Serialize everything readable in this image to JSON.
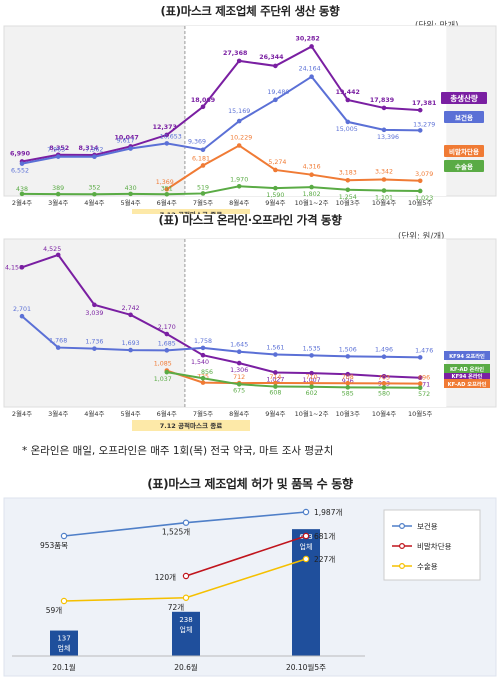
{
  "chart1": {
    "title": "(표)마스크 제조업체 주단위 생산 동향",
    "unit": "(단위: 만개)",
    "categories": [
      "2월4주",
      "3월4주",
      "4월4주",
      "5월4주",
      "6월4주",
      "7월5주",
      "8월4주",
      "9월4주",
      "10월1~2주",
      "10월3주",
      "10월4주",
      "10월5주"
    ],
    "series": [
      {
        "name": "총생산량",
        "color": "#7a1fa2",
        "values": [
          6990,
          8352,
          8314,
          10047,
          12373,
          18069,
          27368,
          26344,
          30282,
          19442,
          17839,
          17381
        ]
      },
      {
        "name": "보건용",
        "color": "#5b70d6",
        "values": [
          6552,
          7963,
          7962,
          9617,
          10653,
          9369,
          15169,
          19480,
          24164,
          15005,
          13396,
          13279
        ]
      },
      {
        "name": "비말차단용",
        "color": "#f07b35",
        "start": 4,
        "values": [
          null,
          null,
          null,
          null,
          1369,
          6181,
          10229,
          5274,
          4316,
          3183,
          3342,
          3079
        ]
      },
      {
        "name": "수술용",
        "color": "#5aab45",
        "values": [
          438,
          389,
          352,
          430,
          351,
          519,
          1970,
          1590,
          1802,
          1254,
          1101,
          1023
        ]
      }
    ],
    "marker": "7.12 공적마스크 종료",
    "ylim": [
      0,
      32000
    ]
  },
  "chart2": {
    "title": "(표) 마스크 온라인·오프라인 가격 동향",
    "unit": "(단위: 원/개)",
    "categories": [
      "2월4주",
      "3월4주",
      "4월4주",
      "5월4주",
      "6월4주",
      "7월5주",
      "8월4주",
      "9월4주",
      "10월1~2주",
      "10월3주",
      "10월4주",
      "10월5주"
    ],
    "series": [
      {
        "name": "KF94 온라인",
        "color": "#7a1fa2",
        "values": [
          4156,
          4525,
          3039,
          2742,
          2170,
          1540,
          1306,
          1027,
          1007,
          976,
          913,
          871
        ]
      },
      {
        "name": "KF94 오프라인",
        "color": "#5b70d6",
        "values": [
          2701,
          1768,
          1736,
          1693,
          1685,
          1758,
          1645,
          1561,
          1535,
          1506,
          1496,
          1476
        ]
      },
      {
        "name": "KF-AD 오프라인",
        "color": "#f07b35",
        "values": [
          null,
          null,
          null,
          null,
          1085,
          725,
          712,
          714,
          710,
          708,
          703,
          696
        ]
      },
      {
        "name": "KF-AD 온라인",
        "color": "#5aab45",
        "values": [
          null,
          null,
          null,
          null,
          1037,
          856,
          675,
          608,
          602,
          585,
          580,
          572
        ]
      }
    ],
    "marker": "7.12 공적마스크 종료",
    "ylim": [
      0,
      4700
    ]
  },
  "note": "* 온라인은 매일, 오프라인은 매주 1회(목) 전국 약국, 마트 조사 평균치",
  "chart3": {
    "title": "(표)마스크 제조업체 허가 및 품목 수 동향",
    "categories": [
      "20.1월",
      "20.6월",
      "20.10월5주"
    ],
    "bars": {
      "values": [
        137,
        238,
        683
      ],
      "unit": "업체",
      "color": "#1f4f9c"
    },
    "series": [
      {
        "name": "보건용",
        "color": "#4f7fc8",
        "values": [
          953,
          1525,
          1987
        ],
        "labels": [
          "953품목",
          "1,525개",
          "1,987개"
        ]
      },
      {
        "name": "비말차단용",
        "color": "#c0141c",
        "values": [
          null,
          120,
          681
        ],
        "labels": [
          "",
          "120개",
          "681개"
        ]
      },
      {
        "name": "수술용",
        "color": "#f5c000",
        "values": [
          59,
          72,
          227
        ],
        "labels": [
          "59개",
          "72개",
          "227개"
        ]
      }
    ]
  }
}
